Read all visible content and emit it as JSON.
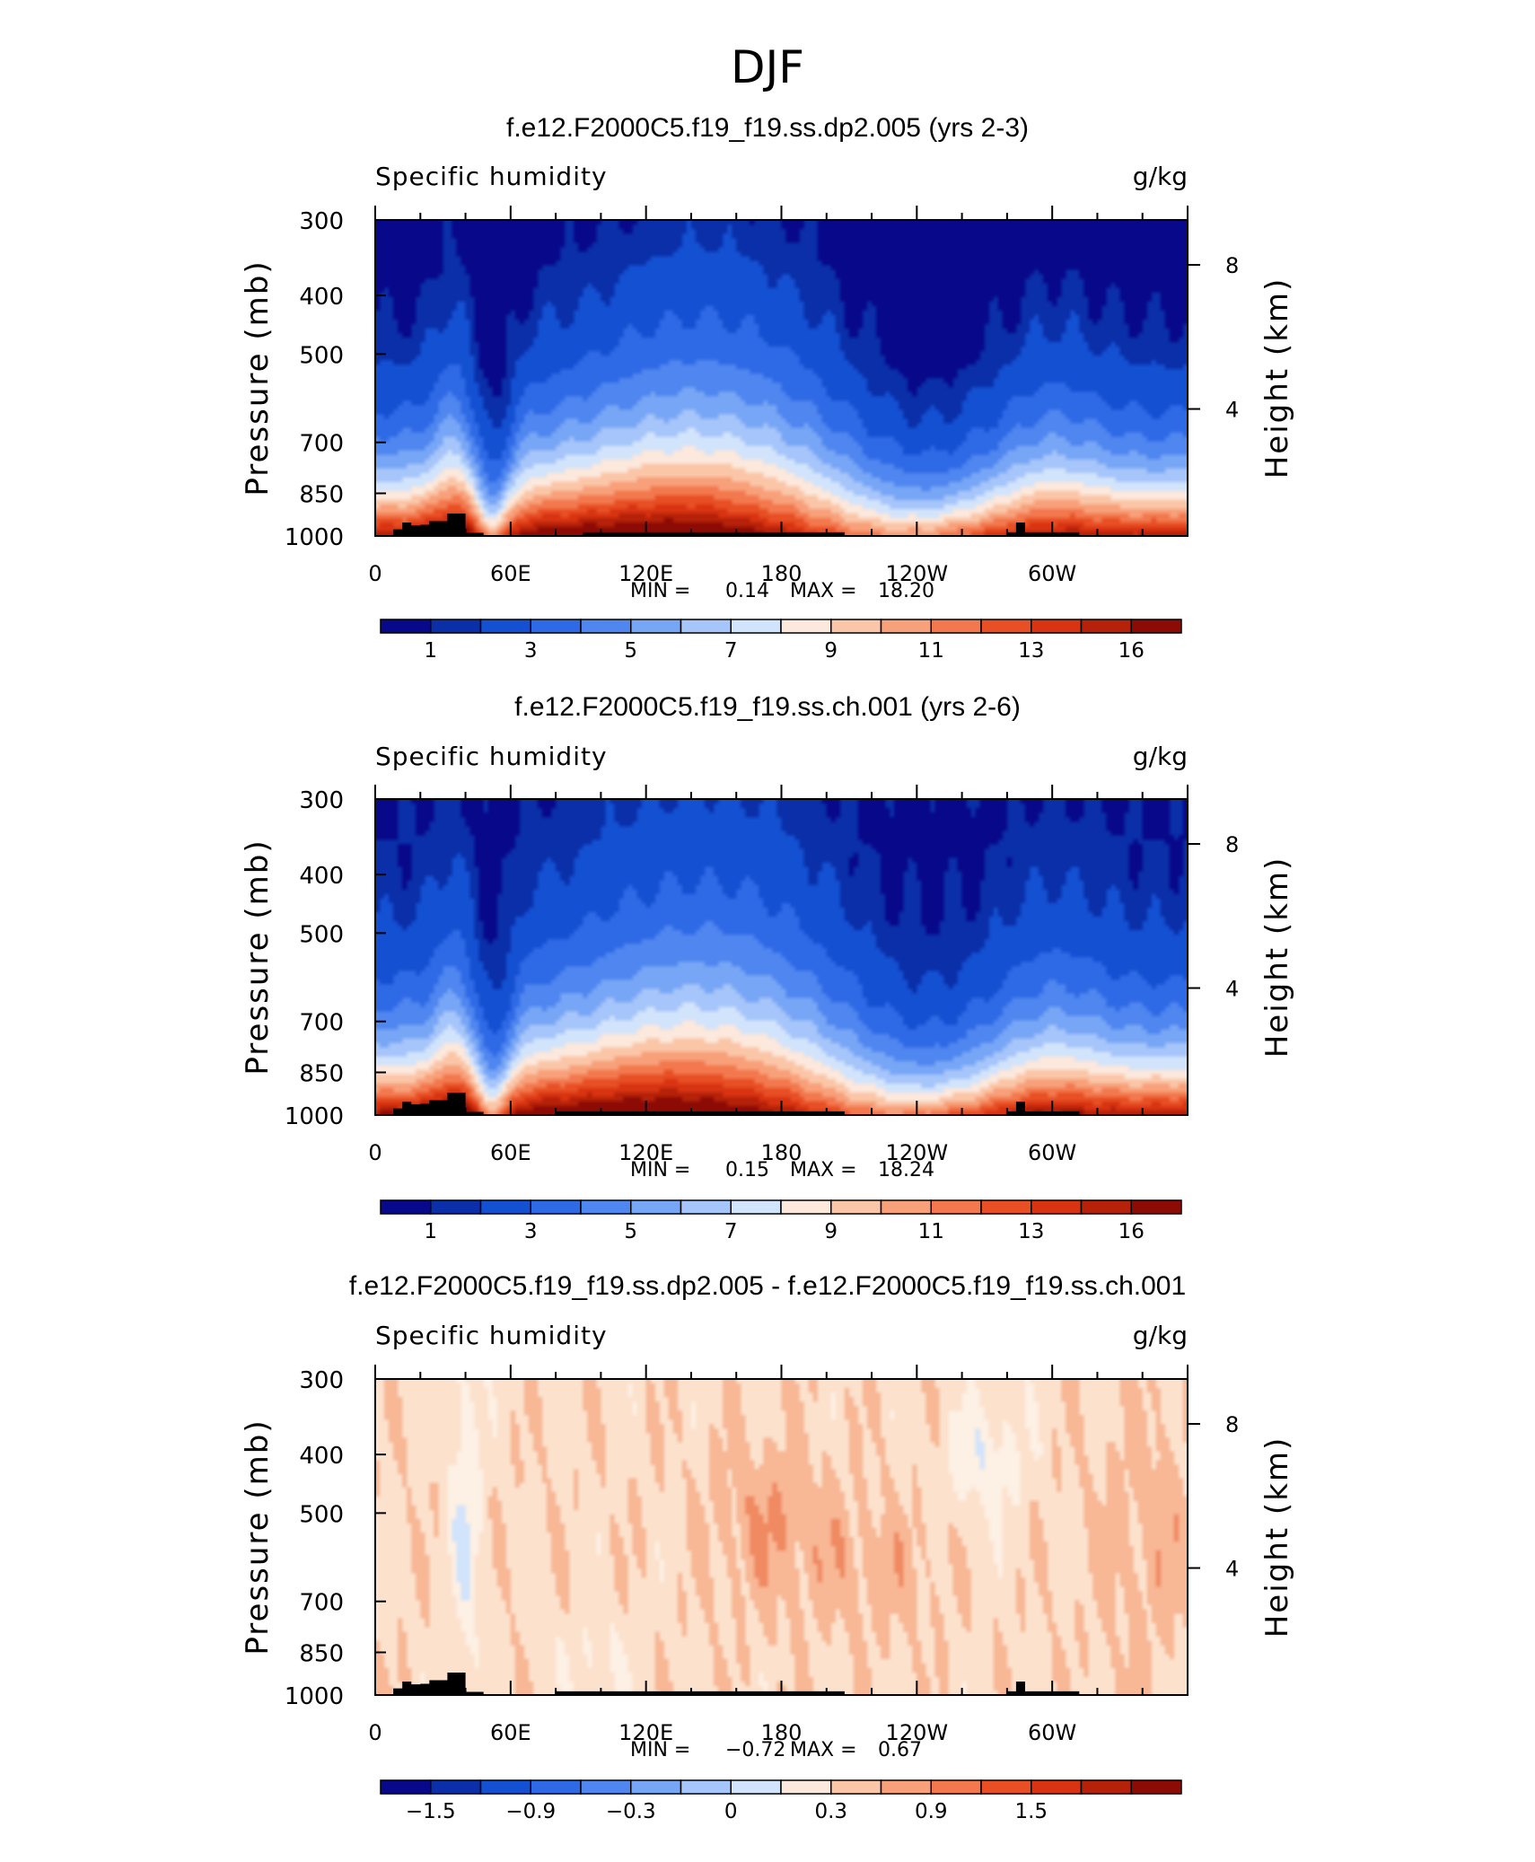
{
  "figure_title": "DJF",
  "chart_data": [
    {
      "type": "heatmap",
      "title": "f.e12.F2000C5.f19_f19.ss.dp2.005 (yrs 2-3)",
      "left_string": "Specific humidity",
      "right_string": "g/kg",
      "ylabel": "Pressure (mb)",
      "y2label": "Height (km)",
      "y_ticks": [
        300,
        400,
        500,
        700,
        850,
        1000
      ],
      "y2_ticks": [
        8,
        4
      ],
      "x_ticks": [
        "0",
        "60E",
        "120E",
        "180",
        "120W",
        "60W"
      ],
      "x_range": [
        0,
        360
      ],
      "ylim": [
        1000,
        300
      ],
      "yscale": "log",
      "stats": {
        "min_label": "MIN =",
        "min": "0.14",
        "max_label": "MAX =",
        "max": "18.20"
      },
      "levels": [
        0.5,
        1,
        2,
        3,
        4,
        5,
        6,
        7,
        8,
        9,
        10,
        11,
        12,
        13,
        14,
        16
      ],
      "colorbar_labels": [
        "1",
        "3",
        "5",
        "7",
        "9",
        "11",
        "13",
        "16"
      ],
      "palette": [
        "#08088a",
        "#0a2fa8",
        "#1450d2",
        "#2f6ae6",
        "#4f86f0",
        "#78a6f6",
        "#a6c5fa",
        "#d2e4fc",
        "#fce8dc",
        "#fbc6a8",
        "#f8a07a",
        "#f3784e",
        "#e84f25",
        "#d83412",
        "#b52209",
        "#8c0c05"
      ],
      "field": "humidity",
      "shift": 0
    },
    {
      "type": "heatmap",
      "title": "f.e12.F2000C5.f19_f19.ss.ch.001 (yrs 2-6)",
      "left_string": "Specific humidity",
      "right_string": "g/kg",
      "ylabel": "Pressure (mb)",
      "y2label": "Height (km)",
      "y_ticks": [
        300,
        400,
        500,
        700,
        850,
        1000
      ],
      "y2_ticks": [
        8,
        4
      ],
      "x_ticks": [
        "0",
        "60E",
        "120E",
        "180",
        "120W",
        "60W"
      ],
      "x_range": [
        0,
        360
      ],
      "ylim": [
        1000,
        300
      ],
      "yscale": "log",
      "stats": {
        "min_label": "MIN =",
        "min": "0.15",
        "max_label": "MAX =",
        "max": "18.24"
      },
      "levels": [
        0.5,
        1,
        2,
        3,
        4,
        5,
        6,
        7,
        8,
        9,
        10,
        11,
        12,
        13,
        14,
        16
      ],
      "colorbar_labels": [
        "1",
        "3",
        "5",
        "7",
        "9",
        "11",
        "13",
        "16"
      ],
      "palette": [
        "#08088a",
        "#0a2fa8",
        "#1450d2",
        "#2f6ae6",
        "#4f86f0",
        "#78a6f6",
        "#a6c5fa",
        "#d2e4fc",
        "#fce8dc",
        "#fbc6a8",
        "#f8a07a",
        "#f3784e",
        "#e84f25",
        "#d83412",
        "#b52209",
        "#8c0c05"
      ],
      "field": "humidity",
      "shift": 0.03
    },
    {
      "type": "heatmap",
      "title": "f.e12.F2000C5.f19_f19.ss.dp2.005 - f.e12.F2000C5.f19_f19.ss.ch.001",
      "left_string": "Specific humidity",
      "right_string": "g/kg",
      "ylabel": "Pressure (mb)",
      "y2label": "Height (km)",
      "y_ticks": [
        300,
        400,
        500,
        700,
        850,
        1000
      ],
      "y2_ticks": [
        8,
        4
      ],
      "x_ticks": [
        "0",
        "60E",
        "120E",
        "180",
        "120W",
        "60W"
      ],
      "x_range": [
        0,
        360
      ],
      "ylim": [
        1000,
        300
      ],
      "yscale": "log",
      "stats": {
        "min_label": "MIN =",
        "min": "-0.72",
        "max_label": "MAX =",
        "max": "0.67"
      },
      "levels": [
        -1.8,
        -1.5,
        -1.2,
        -0.9,
        -0.6,
        -0.3,
        0,
        0.3,
        0.6,
        0.9,
        1.2,
        1.5,
        1.8
      ],
      "colorbar_labels": [
        "-1.5",
        "-0.9",
        "-0.3",
        "0",
        "0.3",
        "0.9",
        "1.5"
      ],
      "palette": [
        "#08088a",
        "#0a2fa8",
        "#1450d2",
        "#2f6ae6",
        "#4f86f0",
        "#78a6f6",
        "#a6c5fa",
        "#d2e4fc",
        "#fce8dc",
        "#fbc6a8",
        "#f8a07a",
        "#f3784e",
        "#e84f25",
        "#d83412",
        "#b52209",
        "#8c0c05"
      ],
      "field": "difference",
      "shift": 0
    }
  ]
}
